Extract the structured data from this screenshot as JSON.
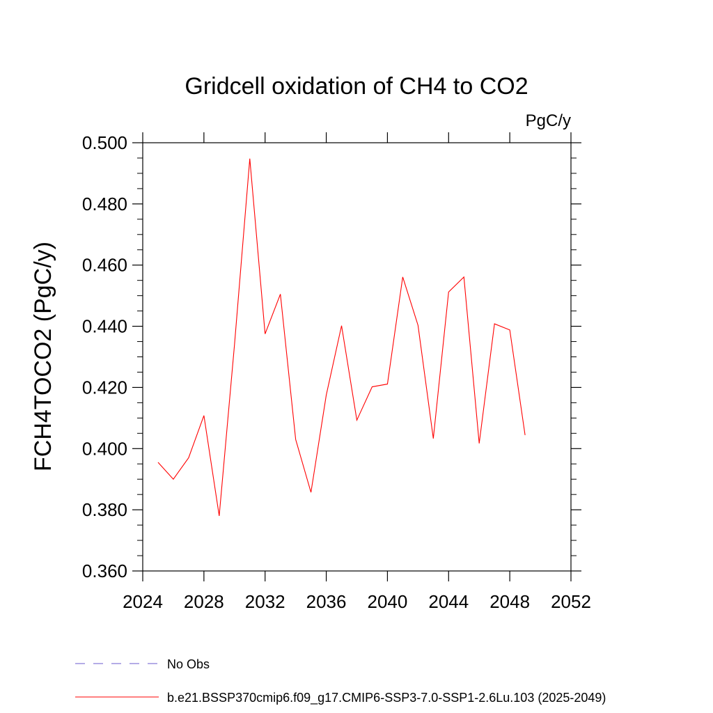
{
  "chart_data": {
    "type": "line",
    "title": "Gridcell oxidation of CH4 to CO2",
    "units": "PgC/y",
    "ylabel": "FCH4TOCO2  (PgC/y)",
    "xlabel": "",
    "xlim": [
      2024,
      2052
    ],
    "ylim": [
      0.36,
      0.5
    ],
    "x_ticks": [
      "2024",
      "2028",
      "2032",
      "2036",
      "2040",
      "2044",
      "2048",
      "2052"
    ],
    "y_ticks": [
      "0.360",
      "0.380",
      "0.400",
      "0.420",
      "0.440",
      "0.460",
      "0.480",
      "0.500"
    ],
    "grid": false,
    "legend_position": "bottom",
    "series": [
      {
        "name": "b.e21.BSSP370cmip6.f09_g17.CMIP6-SSP3-7.0-SSP1-2.6Lu.103 (2025-2049)",
        "color": "#ff0000",
        "x": [
          2025,
          2026,
          2027,
          2028,
          2029,
          2030,
          2031,
          2032,
          2033,
          2034,
          2035,
          2036,
          2037,
          2038,
          2039,
          2040,
          2041,
          2042,
          2043,
          2044,
          2045,
          2046,
          2047,
          2048,
          2049
        ],
        "values": [
          0.3955,
          0.39,
          0.397,
          0.4108,
          0.378,
          0.434,
          0.4948,
          0.4375,
          0.4505,
          0.403,
          0.3857,
          0.4175,
          0.4402,
          0.4093,
          0.4202,
          0.4211,
          0.4561,
          0.4403,
          0.4033,
          0.4512,
          0.4561,
          0.4017,
          0.4408,
          0.4388,
          0.4044
        ]
      }
    ],
    "legend": [
      {
        "label": "No Obs",
        "style": "dashed",
        "color": "#6a5acd"
      },
      {
        "label": "b.e21.BSSP370cmip6.f09_g17.CMIP6-SSP3-7.0-SSP1-2.6Lu.103 (2025-2049)",
        "style": "solid",
        "color": "#ff0000"
      }
    ]
  }
}
